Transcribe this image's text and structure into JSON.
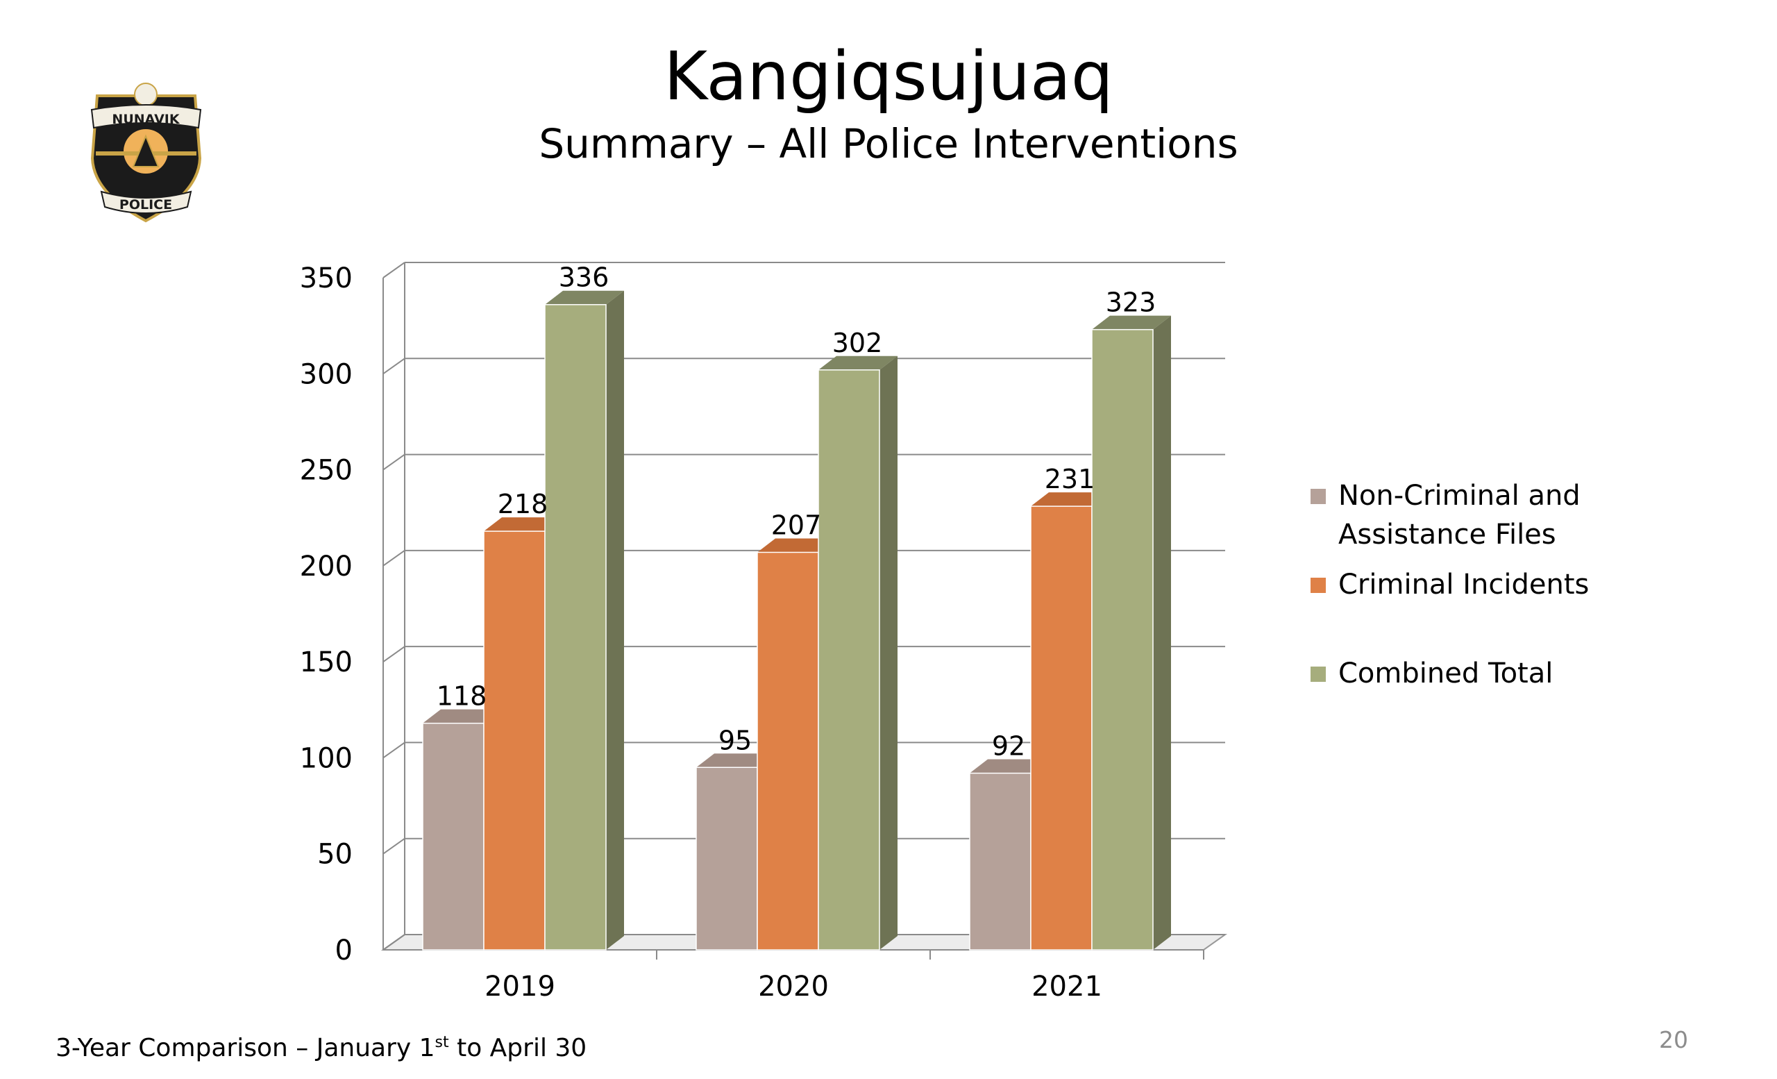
{
  "slide": {
    "title": "Kangiqsujuaq",
    "subtitle": "Summary – All Police Interventions",
    "footnote": {
      "before": "3-Year Comparison – January 1",
      "sup": "st",
      "after": " to April 30"
    },
    "page_number": "20"
  },
  "logo": {
    "top_text": "NUNAVIK",
    "bottom_text": "POLICE",
    "colors": {
      "shield": "#1b1b1b",
      "gold": "#c9a447",
      "sun": "#f0b25a",
      "banner": "#f2eee2"
    }
  },
  "chart_data": {
    "type": "bar",
    "categories": [
      "2019",
      "2020",
      "2021"
    ],
    "series": [
      {
        "name": "Non-Criminal and Assistance Files",
        "values": [
          118,
          95,
          92
        ],
        "color": "#b5a199",
        "side": "#8f7c74",
        "top": "#a08b82"
      },
      {
        "name": "Criminal Incidents",
        "values": [
          218,
          207,
          231
        ],
        "color": "#df8147",
        "side": "#b4612f",
        "top": "#c26a35"
      },
      {
        "name": "Combined Total",
        "values": [
          336,
          302,
          323
        ],
        "color": "#a6ad7d",
        "side": "#6e7354",
        "top": "#7f8663"
      }
    ],
    "yticks": [
      "0",
      "50",
      "100",
      "150",
      "200",
      "250",
      "300",
      "350"
    ],
    "ylim": [
      0,
      350
    ],
    "grid": true,
    "legend": "right",
    "style": "3d-clustered-column"
  }
}
